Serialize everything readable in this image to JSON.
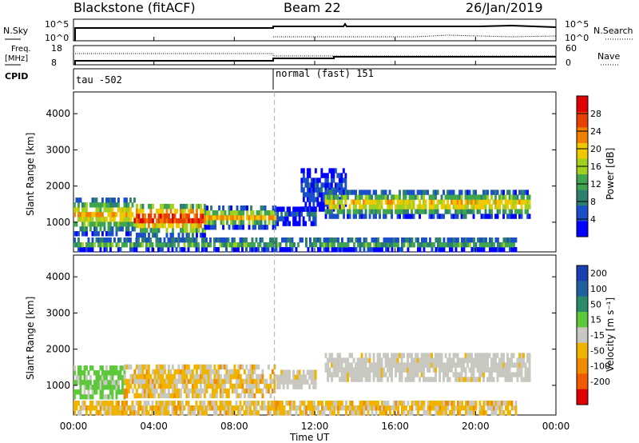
{
  "header": {
    "station": "Blackstone (fitACF)",
    "beam": "Beam 22",
    "date": "26/Jan/2019"
  },
  "strip": {
    "nsky_label": "N.Sky",
    "nsearch_label": "N.Search",
    "freq_label_1": "Freq.",
    "freq_label_2": "[MHz]",
    "nave_label": "Nave",
    "cpid_label": "CPID",
    "left_ticks_top": [
      "10^5",
      "10^0"
    ],
    "right_ticks_top": [
      "10^5",
      "10^0"
    ],
    "left_ticks_mid": [
      "18",
      "8"
    ],
    "right_ticks_mid": [
      "60",
      "0"
    ],
    "cpid_segments": [
      {
        "start_h": 0,
        "end_h": 10,
        "label": "tau -502"
      },
      {
        "start_h": 10,
        "end_h": 24,
        "label": "normal (fast) 151"
      }
    ]
  },
  "colors": {
    "power": [
      "#0000ff",
      "#1a4fc8",
      "#2d7f6f",
      "#3fa54e",
      "#a0d020",
      "#f0c800",
      "#f08000",
      "#e84000",
      "#e00000"
    ],
    "velocity": {
      "pos": [
        "#1a3fb0",
        "#2060a0",
        "#2b8a6a",
        "#5cc83a"
      ],
      "neutral": "#c8c8c0",
      "neg": [
        "#f0b400",
        "#f08c00",
        "#f05a00",
        "#e00000"
      ]
    }
  },
  "chart_data": [
    {
      "type": "heatmap",
      "parameter": "Power",
      "ylabel": "Slant Range [km]",
      "ylim": [
        180,
        4600
      ],
      "yticks": [
        1000,
        2000,
        3000,
        4000
      ],
      "xlim": [
        0,
        24
      ],
      "colorbar": {
        "label": "Power [dB]",
        "range": [
          0,
          32
        ],
        "ticks": [
          "4",
          "8",
          "12",
          "16",
          "20",
          "24",
          "28"
        ]
      },
      "regions": [
        {
          "t0": 0,
          "t1": 3,
          "r0": 620,
          "r1": 1650,
          "peak_db": 22
        },
        {
          "t0": 3,
          "t1": 6.5,
          "r0": 580,
          "r1": 1500,
          "peak_db": 30
        },
        {
          "t0": 6.5,
          "t1": 10,
          "r0": 800,
          "r1": 1350,
          "peak_db": 22
        },
        {
          "t0": 10,
          "t1": 12,
          "r0": 900,
          "r1": 1400,
          "peak_db": 6
        },
        {
          "t0": 11.3,
          "t1": 13.5,
          "r0": 1300,
          "r1": 2400,
          "peak_db": 6
        },
        {
          "t0": 12.5,
          "t1": 22.7,
          "r0": 1100,
          "r1": 1800,
          "peak_db": 22
        },
        {
          "t0": 0,
          "t1": 22,
          "r0": 180,
          "r1": 500,
          "peak_db": 14
        }
      ]
    },
    {
      "type": "heatmap",
      "parameter": "Velocity",
      "ylabel": "Slant Range [km]",
      "xlabel": "Time UT",
      "ylim": [
        180,
        4600
      ],
      "yticks": [
        1000,
        2000,
        3000,
        4000
      ],
      "xlim": [
        0,
        24
      ],
      "xticks": [
        "00:00",
        "04:00",
        "08:00",
        "12:00",
        "16:00",
        "20:00",
        "00:00"
      ],
      "colorbar": {
        "label": "Velocity [m s⁻¹]",
        "ticks": [
          "200",
          "100",
          "50",
          "15",
          "-15",
          "-50",
          "-100",
          "-200"
        ]
      },
      "regions": [
        {
          "t0": 0,
          "t1": 2.5,
          "r0": 620,
          "r1": 1450,
          "class": "pos-50"
        },
        {
          "t0": 2.5,
          "t1": 10,
          "r0": 650,
          "r1": 1450,
          "class": "neg-15"
        },
        {
          "t0": 10,
          "t1": 12,
          "r0": 900,
          "r1": 1400,
          "class": "neutral"
        },
        {
          "t0": 12.5,
          "t1": 22.7,
          "r0": 1100,
          "r1": 1800,
          "class": "neutral"
        },
        {
          "t0": 0,
          "t1": 22,
          "r0": 180,
          "r1": 500,
          "class": "neg-15"
        }
      ]
    }
  ]
}
